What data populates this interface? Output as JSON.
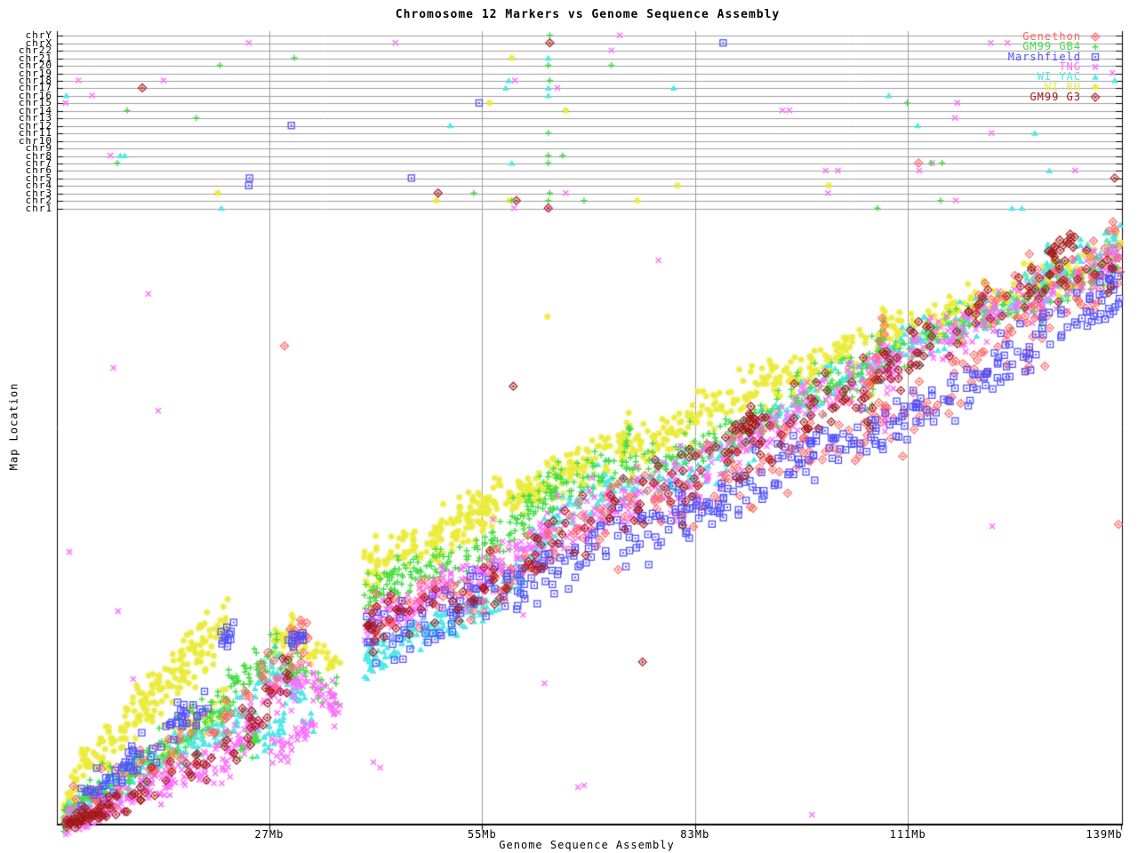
{
  "title": "Chromosome 12 Markers vs Genome Sequence Assembly",
  "x_axis": {
    "label": "Genome Sequence Assembly",
    "unit": "Mb",
    "ticks": [
      {
        "label": "27Mb",
        "mb": 27
      },
      {
        "label": "55Mb",
        "mb": 55
      },
      {
        "label": "83Mb",
        "mb": 83
      },
      {
        "label": "111Mb",
        "mb": 111
      },
      {
        "label": "139Mb",
        "mb": 139
      }
    ]
  },
  "y_axis": {
    "label": "Map Location",
    "chromosomes": [
      "chrY",
      "chrX",
      "chr22",
      "chr21",
      "chr20",
      "chr19",
      "chr18",
      "chr17",
      "chr16",
      "chr15",
      "chr14",
      "chr13",
      "chr12",
      "chr11",
      "chr10",
      "chr9",
      "chr8",
      "chr7",
      "chr6",
      "chr5",
      "chr4",
      "chr3",
      "chr2",
      "chr1"
    ]
  },
  "legend": [
    {
      "name": "Genethon",
      "color": "#ff6363",
      "marker": "open-diamond"
    },
    {
      "name": "GM99 GB4",
      "color": "#44dd44",
      "marker": "plus"
    },
    {
      "name": "Marshfield",
      "color": "#5050ff",
      "marker": "open-square"
    },
    {
      "name": "TNG",
      "color": "#ff6bff",
      "marker": "x"
    },
    {
      "name": "WI YAC",
      "color": "#4fe8e8",
      "marker": "triangle"
    },
    {
      "name": "WI RH",
      "color": "#ebeb3d",
      "marker": "asterisk"
    },
    {
      "name": "GM99 G3",
      "color": "#a51717",
      "marker": "open-diamond"
    }
  ],
  "chart_data": {
    "type": "scatter",
    "title": "Chromosome 12 Markers vs Genome Sequence Assembly",
    "xlabel": "Genome Sequence Assembly",
    "ylabel": "Map Location",
    "x_range_mb": [
      0,
      139
    ],
    "map_units_range": [
      0,
      100
    ],
    "grid_x_mb": [
      27,
      55,
      83,
      111
    ],
    "series_keys": [
      "Genethon",
      "GM99 GB4",
      "Marshfield",
      "TNG",
      "WI YAC",
      "WI RH",
      "GM99 G3"
    ],
    "bands_comment": "each band: [seriesIndex, mb0, mb1, u0, u1, spread_u, n_points] — diagonal scatter segments of chr12 map-vs-assembly",
    "bands": [
      [
        5,
        0,
        2,
        1,
        8,
        1.5,
        30
      ],
      [
        5,
        2,
        9,
        8,
        17,
        2,
        60
      ],
      [
        5,
        9,
        15,
        17,
        25,
        2.5,
        60
      ],
      [
        5,
        15,
        21.5,
        25,
        33,
        2.5,
        70
      ],
      [
        5,
        12,
        22,
        12,
        20,
        2,
        50
      ],
      [
        5,
        27.5,
        30.3,
        29.9,
        31.2,
        1.4,
        30
      ],
      [
        5,
        31,
        36.3,
        30,
        26,
        1.5,
        25
      ],
      [
        5,
        39.5,
        48,
        42,
        46,
        2,
        60
      ],
      [
        5,
        48,
        57,
        46,
        53,
        2.2,
        90
      ],
      [
        5,
        54.5,
        56,
        49,
        54,
        0.6,
        18
      ],
      [
        5,
        57,
        64,
        53,
        56,
        2,
        55
      ],
      [
        5,
        64,
        74,
        56,
        62,
        2,
        70
      ],
      [
        5,
        73.3,
        74.3,
        60,
        68,
        0.4,
        12
      ],
      [
        5,
        74,
        83,
        61,
        67,
        2,
        60
      ],
      [
        5,
        83,
        97,
        67,
        75,
        2,
        80
      ],
      [
        5,
        97,
        105.5,
        74,
        78,
        2,
        55
      ],
      [
        5,
        105.8,
        108,
        68,
        84,
        0.8,
        25
      ],
      [
        5,
        108,
        120,
        80,
        85,
        2,
        70
      ],
      [
        5,
        120,
        139,
        85,
        94,
        2,
        85
      ],
      [
        1,
        0,
        4,
        1,
        5,
        1.2,
        50
      ],
      [
        1,
        4,
        14,
        5,
        13,
        1.8,
        70
      ],
      [
        1,
        14,
        22,
        13,
        20,
        2,
        60
      ],
      [
        1,
        21.5,
        27,
        22,
        28,
        2,
        45
      ],
      [
        1,
        27,
        31,
        28,
        24,
        1.7,
        30
      ],
      [
        1,
        31,
        36,
        24,
        21,
        1.5,
        22
      ],
      [
        1,
        23,
        25.5,
        12,
        15,
        1.5,
        25
      ],
      [
        1,
        39.5,
        45,
        37,
        41,
        1.8,
        55
      ],
      [
        1,
        45,
        56,
        41,
        44,
        1.8,
        70
      ],
      [
        1,
        56,
        64,
        44,
        55,
        2.2,
        70
      ],
      [
        1,
        64,
        64.8,
        50,
        58,
        0.4,
        14
      ],
      [
        1,
        64,
        83,
        55,
        61,
        2,
        100
      ],
      [
        1,
        73.5,
        74.5,
        58,
        66,
        0.4,
        12
      ],
      [
        1,
        83,
        97,
        61,
        70,
        2,
        85
      ],
      [
        1,
        97,
        111,
        70,
        78,
        2,
        80
      ],
      [
        1,
        105.6,
        108,
        66,
        82,
        0.8,
        20
      ],
      [
        1,
        111,
        126,
        78,
        85,
        2,
        80
      ],
      [
        1,
        126,
        139,
        85,
        93,
        2,
        70
      ],
      [
        3,
        0,
        10,
        0,
        5,
        1.2,
        90
      ],
      [
        3,
        10,
        22,
        5,
        11,
        1.8,
        90
      ],
      [
        3,
        22,
        26,
        12,
        18,
        1.8,
        35
      ],
      [
        3,
        26,
        32,
        20,
        25,
        1.8,
        45
      ],
      [
        3,
        32,
        36.2,
        25,
        18.5,
        1.6,
        40
      ],
      [
        3,
        27,
        30,
        11,
        13,
        1.3,
        20
      ],
      [
        3,
        30,
        33,
        14,
        16,
        1.3,
        20
      ],
      [
        3,
        39.5,
        46,
        32,
        36,
        1.6,
        55
      ],
      [
        3,
        46,
        52,
        36,
        41,
        1.8,
        55
      ],
      [
        3,
        52,
        58,
        39,
        42,
        1.8,
        55
      ],
      [
        3,
        58,
        64,
        42,
        48,
        2,
        55
      ],
      [
        3,
        64,
        83,
        48,
        57,
        2.4,
        110
      ],
      [
        3,
        83,
        97,
        57,
        68,
        2,
        90
      ],
      [
        3,
        97,
        111,
        68,
        77,
        2,
        80
      ],
      [
        3,
        107.8,
        108.6,
        64,
        80,
        0.7,
        16
      ],
      [
        3,
        111,
        126,
        77,
        85,
        2,
        90
      ],
      [
        3,
        126,
        139,
        85,
        93,
        2,
        80
      ],
      [
        4,
        0,
        6,
        1,
        6,
        1.2,
        50
      ],
      [
        4,
        6,
        16,
        6,
        13,
        1.8,
        60
      ],
      [
        4,
        16,
        22,
        13,
        17,
        1.8,
        50
      ],
      [
        4,
        22,
        28,
        17,
        26,
        2,
        40
      ],
      [
        4,
        28,
        33,
        26,
        17,
        2,
        30
      ],
      [
        4,
        25,
        29,
        14,
        17,
        1.5,
        25
      ],
      [
        4,
        39.5,
        44,
        26,
        30,
        1.6,
        45
      ],
      [
        4,
        44,
        50,
        30,
        33,
        1.6,
        45
      ],
      [
        4,
        50,
        57,
        33,
        37,
        1.6,
        50
      ],
      [
        4,
        57,
        64,
        37,
        49,
        2,
        55
      ],
      [
        4,
        64,
        72,
        49,
        56,
        2,
        55
      ],
      [
        4,
        72,
        83,
        54,
        58,
        2,
        60
      ],
      [
        4,
        83,
        97,
        58,
        69,
        2,
        70
      ],
      [
        4,
        97,
        111,
        69,
        78,
        2,
        70
      ],
      [
        4,
        111,
        126,
        78,
        86,
        2,
        70
      ],
      [
        4,
        126,
        139,
        86,
        95,
        2,
        80
      ],
      [
        4,
        128.8,
        129.6,
        87,
        96,
        0.5,
        14
      ],
      [
        0,
        1,
        10,
        2,
        9,
        2,
        25
      ],
      [
        0,
        10,
        22,
        9,
        18,
        2.5,
        30
      ],
      [
        0,
        23,
        33,
        21,
        29,
        3,
        20
      ],
      [
        0,
        29.5,
        32,
        30.5,
        32.4,
        1.5,
        12
      ],
      [
        0,
        39.5,
        55,
        33,
        39,
        2.5,
        40
      ],
      [
        0,
        55,
        70,
        39,
        50,
        3,
        40
      ],
      [
        0,
        70,
        83,
        50,
        55,
        3,
        35
      ],
      [
        0,
        83,
        97,
        55,
        62,
        3,
        38
      ],
      [
        0,
        97,
        111,
        62,
        67,
        3,
        38
      ],
      [
        0,
        105.8,
        108.5,
        70,
        86,
        1,
        12
      ],
      [
        0,
        111,
        126,
        67,
        80,
        3,
        38
      ],
      [
        0,
        126,
        139,
        80,
        90,
        3,
        38
      ],
      [
        0,
        120,
        139,
        85,
        95,
        2.5,
        25
      ],
      [
        2,
        2,
        7,
        4,
        9,
        1.5,
        18
      ],
      [
        2,
        6,
        13,
        8,
        13,
        2,
        25
      ],
      [
        2,
        13,
        19,
        16,
        20,
        1.5,
        25
      ],
      [
        2,
        20.5,
        22.5,
        30.5,
        31.8,
        1,
        12
      ],
      [
        2,
        29.5,
        31.5,
        30,
        31,
        1,
        14
      ],
      [
        2,
        39.5,
        55,
        30,
        37,
        2.5,
        55
      ],
      [
        2,
        55,
        70,
        37,
        45,
        2.5,
        55
      ],
      [
        2,
        70,
        83,
        45,
        51,
        2.5,
        50
      ],
      [
        2,
        83,
        97,
        51,
        60,
        2.5,
        55
      ],
      [
        2,
        97,
        111,
        60,
        66,
        2.5,
        55
      ],
      [
        2,
        111,
        126,
        66,
        77,
        2.5,
        55
      ],
      [
        2,
        126,
        139,
        77,
        88,
        2.5,
        55
      ],
      [
        6,
        0,
        4,
        0,
        2,
        0.8,
        30
      ],
      [
        6,
        4,
        22,
        2,
        13,
        1.5,
        45
      ],
      [
        6,
        22,
        30,
        14,
        24,
        3,
        25
      ],
      [
        6,
        39.5,
        55,
        32,
        38,
        2.5,
        35
      ],
      [
        6,
        55,
        70,
        38,
        50,
        3,
        35
      ],
      [
        6,
        70,
        83,
        50,
        57,
        3,
        30
      ],
      [
        6,
        83,
        97,
        57,
        66,
        3,
        30
      ],
      [
        6,
        88,
        93,
        64,
        68,
        1,
        20
      ],
      [
        6,
        97,
        105.5,
        66,
        72,
        3,
        25
      ],
      [
        6,
        105.8,
        108.4,
        66,
        80,
        0.8,
        10
      ],
      [
        6,
        108,
        120,
        74,
        84,
        2.5,
        30
      ],
      [
        6,
        120,
        139,
        84,
        93,
        2,
        40
      ],
      [
        6,
        129.5,
        133,
        93,
        96,
        0.8,
        18
      ]
    ],
    "outliers_comment": "isolated points in main region: [seriesIndex, mb, map_u]",
    "outliers": [
      [
        3,
        11.1,
        86.8
      ],
      [
        3,
        6.5,
        74.7
      ],
      [
        3,
        12.4,
        67.7
      ],
      [
        3,
        0.7,
        44.6
      ],
      [
        3,
        7.1,
        34.9
      ],
      [
        3,
        9.1,
        23.8
      ],
      [
        0,
        29,
        78.3
      ],
      [
        5,
        63.6,
        83.1
      ],
      [
        6,
        59.1,
        71.7
      ],
      [
        3,
        78.2,
        92.3
      ],
      [
        3,
        56.4,
        49.9
      ],
      [
        3,
        60.4,
        34.3
      ],
      [
        3,
        63.2,
        23.1
      ],
      [
        3,
        67.6,
        6.1
      ],
      [
        3,
        68.4,
        6.4
      ],
      [
        3,
        98.4,
        1.6
      ],
      [
        3,
        122.1,
        48.8
      ],
      [
        0,
        138.7,
        49.1
      ],
      [
        6,
        76.1,
        26.6
      ],
      [
        0,
        72.9,
        41.7
      ],
      [
        3,
        40.7,
        10.2
      ],
      [
        3,
        41.6,
        9.3
      ]
    ],
    "chromosome_points_comment": "markers hitting other chromosome rows: [seriesIndex, mb, chromosome]",
    "chromosome_points": [
      [
        3,
        73.1,
        "chrY"
      ],
      [
        1,
        63.9,
        "chrY"
      ],
      [
        3,
        24.3,
        "chrX"
      ],
      [
        3,
        43.6,
        "chrX"
      ],
      [
        2,
        86.7,
        "chrX"
      ],
      [
        6,
        63.9,
        "chrX"
      ],
      [
        3,
        121.9,
        "chrX"
      ],
      [
        3,
        124.1,
        "chrX"
      ],
      [
        3,
        72,
        "chr22"
      ],
      [
        1,
        30.3,
        "chr21"
      ],
      [
        5,
        58.9,
        "chr21"
      ],
      [
        4,
        63.7,
        "chr21"
      ],
      [
        1,
        20.5,
        "chr20"
      ],
      [
        1,
        63.7,
        "chr20"
      ],
      [
        1,
        72,
        "chr20"
      ],
      [
        3,
        137.9,
        "chr19"
      ],
      [
        3,
        1.9,
        "chr18"
      ],
      [
        3,
        13.1,
        "chr18"
      ],
      [
        4,
        58.5,
        "chr18"
      ],
      [
        3,
        59.3,
        "chr18"
      ],
      [
        1,
        63.9,
        "chr18"
      ],
      [
        4,
        138.2,
        "chr18"
      ],
      [
        6,
        10.3,
        "chr17"
      ],
      [
        4,
        58.1,
        "chr17"
      ],
      [
        4,
        63.7,
        "chr17"
      ],
      [
        3,
        64.9,
        "chr17"
      ],
      [
        4,
        80.2,
        "chr17"
      ],
      [
        4,
        0.3,
        "chr16"
      ],
      [
        3,
        3.7,
        "chr16"
      ],
      [
        4,
        63.7,
        "chr16"
      ],
      [
        4,
        108.5,
        "chr16"
      ],
      [
        3,
        0.2,
        "chr15"
      ],
      [
        2,
        54.6,
        "chr15"
      ],
      [
        5,
        56,
        "chr15"
      ],
      [
        3,
        117.5,
        "chr15"
      ],
      [
        1,
        110.9,
        "chr15"
      ],
      [
        5,
        66,
        "chr14"
      ],
      [
        1,
        8.3,
        "chr14"
      ],
      [
        3,
        94.5,
        "chr14"
      ],
      [
        3,
        95.4,
        "chr14"
      ],
      [
        1,
        17.4,
        "chr13"
      ],
      [
        3,
        117.2,
        "chr13"
      ],
      [
        2,
        29.9,
        "chr12"
      ],
      [
        4,
        50.8,
        "chr12"
      ],
      [
        4,
        112.3,
        "chr12"
      ],
      [
        1,
        63.7,
        "chr11"
      ],
      [
        4,
        127.7,
        "chr11"
      ],
      [
        3,
        122,
        "chr11"
      ],
      [
        4,
        7.4,
        "chr8"
      ],
      [
        4,
        8,
        "chr8"
      ],
      [
        3,
        6.1,
        "chr8"
      ],
      [
        1,
        63.7,
        "chr8"
      ],
      [
        1,
        65.6,
        "chr8"
      ],
      [
        1,
        7,
        "chr7"
      ],
      [
        1,
        63.7,
        "chr7"
      ],
      [
        4,
        58.9,
        "chr7"
      ],
      [
        3,
        114.2,
        "chr7"
      ],
      [
        0,
        112.4,
        "chr7"
      ],
      [
        1,
        114.1,
        "chr7"
      ],
      [
        1,
        115.5,
        "chr7"
      ],
      [
        3,
        100.2,
        "chr6"
      ],
      [
        3,
        101.8,
        "chr6"
      ],
      [
        3,
        112.5,
        "chr6"
      ],
      [
        4,
        129.6,
        "chr6"
      ],
      [
        3,
        133,
        "chr6"
      ],
      [
        2,
        24.4,
        "chr5"
      ],
      [
        2,
        45.7,
        "chr5"
      ],
      [
        6,
        138.2,
        "chr5"
      ],
      [
        5,
        80.7,
        "chr4"
      ],
      [
        5,
        100.6,
        "chr4"
      ],
      [
        2,
        24.3,
        "chr4"
      ],
      [
        1,
        53.9,
        "chr3"
      ],
      [
        1,
        63.9,
        "chr3"
      ],
      [
        3,
        66,
        "chr3"
      ],
      [
        5,
        20.2,
        "chr3"
      ],
      [
        6,
        49.2,
        "chr3"
      ],
      [
        3,
        100.5,
        "chr3"
      ],
      [
        6,
        59.5,
        "chr2"
      ],
      [
        5,
        58.6,
        "chr2"
      ],
      [
        1,
        58.9,
        "chr2"
      ],
      [
        1,
        68.4,
        "chr2"
      ],
      [
        5,
        75.4,
        "chr2"
      ],
      [
        5,
        49,
        "chr2"
      ],
      [
        1,
        63.7,
        "chr2"
      ],
      [
        3,
        117.3,
        "chr2"
      ],
      [
        1,
        115.3,
        "chr2"
      ],
      [
        3,
        63.7,
        "chr1"
      ],
      [
        6,
        63.7,
        "chr1"
      ],
      [
        3,
        59.2,
        "chr1"
      ],
      [
        4,
        20.7,
        "chr1"
      ],
      [
        1,
        107,
        "chr1"
      ],
      [
        4,
        124.7,
        "chr1"
      ],
      [
        4,
        126,
        "chr1"
      ]
    ]
  }
}
